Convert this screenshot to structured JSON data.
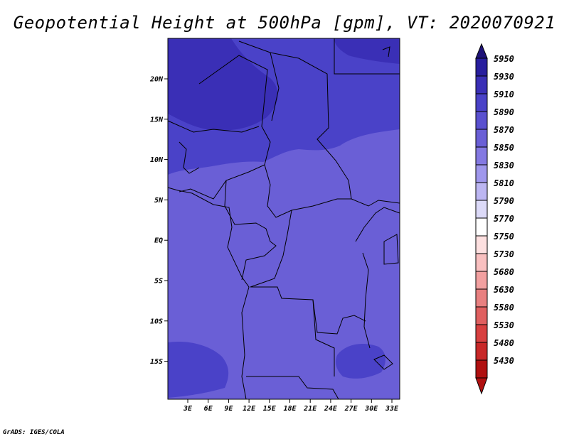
{
  "title": "Geopotential Height at 500hPa [gpm], VT: 2020070921",
  "credit": "GrADS: IGES/COLA",
  "map": {
    "lon_labels": [
      "3E",
      "6E",
      "9E",
      "12E",
      "15E",
      "18E",
      "21E",
      "24E",
      "27E",
      "30E",
      "33E"
    ],
    "lat_labels": [
      "20N",
      "15N",
      "10N",
      "5N",
      "EQ",
      "5S",
      "10S",
      "15S"
    ],
    "fill_colors": {
      "5870": "#6a5fd6",
      "5890": "#4a42c8",
      "5910": "#3a2fb6"
    }
  },
  "colorbar": {
    "levels": [
      "5950",
      "5930",
      "5910",
      "5890",
      "5870",
      "5850",
      "5830",
      "5810",
      "5790",
      "5770",
      "5750",
      "5730",
      "5680",
      "5630",
      "5580",
      "5530",
      "5480",
      "5430"
    ],
    "colors": [
      "#281e9e",
      "#3a2fb6",
      "#4a42c8",
      "#5a51d0",
      "#6a5fd6",
      "#8479e2",
      "#9f97ec",
      "#bcb6f2",
      "#dcdaf8",
      "#ffffff",
      "#fde0e0",
      "#f9c0c0",
      "#f2a0a0",
      "#e88080",
      "#e06060",
      "#d84040",
      "#c82828",
      "#b01010"
    ],
    "top_color": "#1e1278",
    "bottom_color": "#b01010"
  }
}
